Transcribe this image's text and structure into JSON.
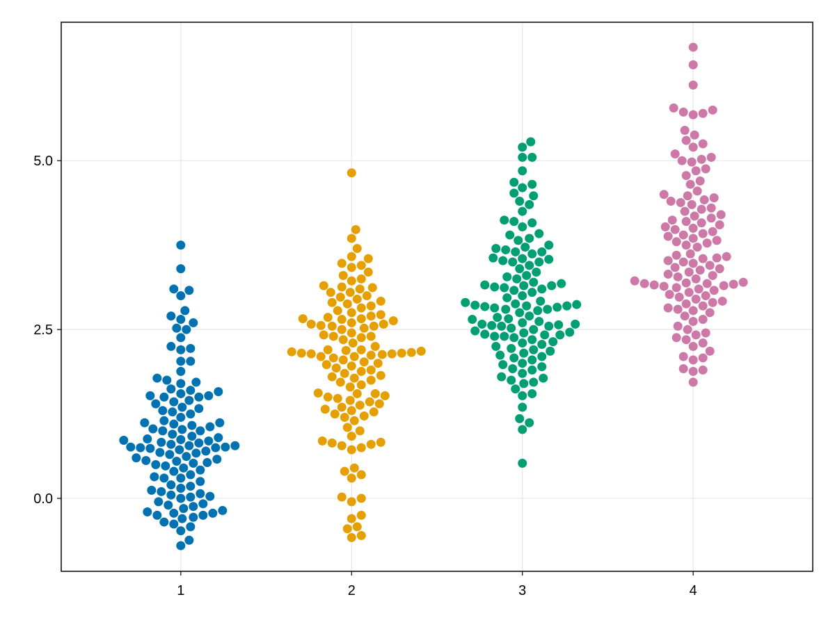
{
  "chart_data": {
    "type": "scatter",
    "subtype": "beeswarm",
    "title": "",
    "xlabel": "",
    "ylabel": "",
    "xlim": [
      0.3,
      4.7
    ],
    "ylim": [
      -1.08,
      7.05
    ],
    "x_ticks": [
      1,
      2,
      3,
      4
    ],
    "x_tick_labels": [
      "1",
      "2",
      "3",
      "4"
    ],
    "y_ticks": [
      0.0,
      2.5,
      5.0
    ],
    "y_tick_labels": [
      "0.0",
      "2.5",
      "5.0"
    ],
    "grid": true,
    "legend": "none",
    "series": [
      {
        "category": 1,
        "color": "#0072B2",
        "values": [
          3.75,
          3.4,
          3.1,
          3.08,
          3.0,
          2.78,
          2.7,
          2.65,
          2.6,
          2.52,
          2.5,
          2.38,
          2.25,
          2.22,
          2.2,
          2.03,
          2.03,
          1.88,
          1.78,
          1.75,
          1.72,
          1.7,
          1.62,
          1.6,
          1.58,
          1.55,
          1.52,
          1.52,
          1.5,
          1.5,
          1.45,
          1.43,
          1.4,
          1.35,
          1.33,
          1.3,
          1.28,
          1.25,
          1.2,
          1.15,
          1.12,
          1.12,
          1.1,
          1.08,
          1.06,
          1.03,
          1.02,
          1.0,
          1.0,
          0.95,
          0.92,
          0.9,
          0.88,
          0.87,
          0.86,
          0.85,
          0.83,
          0.82,
          0.8,
          0.78,
          0.78,
          0.76,
          0.76,
          0.75,
          0.75,
          0.74,
          0.72,
          0.7,
          0.68,
          0.67,
          0.65,
          0.62,
          0.6,
          0.58,
          0.56,
          0.55,
          0.53,
          0.52,
          0.5,
          0.48,
          0.45,
          0.42,
          0.4,
          0.35,
          0.32,
          0.3,
          0.3,
          0.25,
          0.2,
          0.18,
          0.15,
          0.12,
          0.1,
          0.07,
          0.05,
          0.03,
          0.02,
          0.0,
          -0.05,
          -0.08,
          -0.1,
          -0.12,
          -0.15,
          -0.18,
          -0.2,
          -0.22,
          -0.22,
          -0.25,
          -0.25,
          -0.28,
          -0.3,
          -0.35,
          -0.38,
          -0.42,
          -0.48,
          -0.62,
          -0.7
        ]
      },
      {
        "category": 2,
        "color": "#E69F00",
        "values": [
          4.82,
          3.98,
          3.85,
          3.7,
          3.58,
          3.55,
          3.48,
          3.45,
          3.42,
          3.35,
          3.3,
          3.25,
          3.22,
          3.15,
          3.13,
          3.12,
          3.1,
          3.05,
          3.05,
          3.0,
          2.98,
          2.95,
          2.92,
          2.9,
          2.88,
          2.85,
          2.82,
          2.78,
          2.75,
          2.72,
          2.7,
          2.68,
          2.66,
          2.66,
          2.65,
          2.63,
          2.6,
          2.58,
          2.58,
          2.56,
          2.55,
          2.55,
          2.52,
          2.5,
          2.45,
          2.42,
          2.4,
          2.4,
          2.38,
          2.35,
          2.3,
          2.25,
          2.2,
          2.2,
          2.19,
          2.18,
          2.17,
          2.16,
          2.15,
          2.15,
          2.14,
          2.14,
          2.13,
          2.12,
          2.1,
          2.1,
          2.08,
          2.05,
          2.02,
          2.0,
          1.98,
          1.96,
          1.93,
          1.9,
          1.88,
          1.85,
          1.82,
          1.8,
          1.78,
          1.75,
          1.72,
          1.68,
          1.65,
          1.56,
          1.55,
          1.55,
          1.52,
          1.5,
          1.48,
          1.45,
          1.43,
          1.4,
          1.38,
          1.35,
          1.32,
          1.3,
          1.28,
          1.25,
          1.22,
          1.2,
          1.15,
          1.05,
          1.0,
          0.92,
          0.85,
          0.83,
          0.82,
          0.8,
          0.78,
          0.75,
          0.72,
          0.45,
          0.4,
          0.35,
          0.3,
          0.02,
          0.0,
          -0.05,
          -0.25,
          -0.3,
          -0.42,
          -0.45,
          -0.55,
          -0.58
        ]
      },
      {
        "category": 3,
        "color": "#009E73",
        "values": [
          5.28,
          5.2,
          5.05,
          5.05,
          4.85,
          4.68,
          4.65,
          4.6,
          4.52,
          4.48,
          4.4,
          4.35,
          4.25,
          4.12,
          4.1,
          4.08,
          4.02,
          3.92,
          3.9,
          3.85,
          3.82,
          3.75,
          3.72,
          3.7,
          3.68,
          3.65,
          3.65,
          3.62,
          3.56,
          3.55,
          3.54,
          3.52,
          3.5,
          3.5,
          3.45,
          3.4,
          3.35,
          3.3,
          3.28,
          3.25,
          3.2,
          3.18,
          3.16,
          3.15,
          3.15,
          3.13,
          3.12,
          3.1,
          3.08,
          3.05,
          3.0,
          2.97,
          2.92,
          2.9,
          2.88,
          2.87,
          2.86,
          2.85,
          2.85,
          2.84,
          2.83,
          2.82,
          2.8,
          2.8,
          2.78,
          2.75,
          2.7,
          2.68,
          2.66,
          2.65,
          2.62,
          2.6,
          2.58,
          2.58,
          2.57,
          2.56,
          2.55,
          2.55,
          2.52,
          2.5,
          2.48,
          2.46,
          2.45,
          2.43,
          2.42,
          2.42,
          2.4,
          2.4,
          2.38,
          2.35,
          2.32,
          2.3,
          2.28,
          2.25,
          2.22,
          2.2,
          2.18,
          2.15,
          2.12,
          2.1,
          2.08,
          2.05,
          2.0,
          1.98,
          1.95,
          1.92,
          1.9,
          1.85,
          1.8,
          1.78,
          1.75,
          1.72,
          1.7,
          1.62,
          1.55,
          1.52,
          1.35,
          1.18,
          1.12,
          1.02,
          0.52
        ]
      },
      {
        "category": 4,
        "color": "#CC79A7",
        "values": [
          6.68,
          6.42,
          6.12,
          5.78,
          5.75,
          5.72,
          5.7,
          5.68,
          5.45,
          5.38,
          5.3,
          5.25,
          5.2,
          5.1,
          5.05,
          5.02,
          5.0,
          4.98,
          4.88,
          4.85,
          4.78,
          4.7,
          4.65,
          4.55,
          4.5,
          4.48,
          4.45,
          4.42,
          4.4,
          4.38,
          4.35,
          4.3,
          4.28,
          4.25,
          4.2,
          4.18,
          4.15,
          4.12,
          4.1,
          4.08,
          4.05,
          4.02,
          4.0,
          3.98,
          3.95,
          3.92,
          3.9,
          3.88,
          3.85,
          3.82,
          3.8,
          3.78,
          3.75,
          3.72,
          3.62,
          3.6,
          3.58,
          3.56,
          3.55,
          3.52,
          3.5,
          3.48,
          3.45,
          3.42,
          3.4,
          3.38,
          3.35,
          3.32,
          3.3,
          3.28,
          3.25,
          3.22,
          3.2,
          3.19,
          3.18,
          3.18,
          3.17,
          3.16,
          3.15,
          3.14,
          3.12,
          3.1,
          3.08,
          3.05,
          3.02,
          3.0,
          2.98,
          2.95,
          2.92,
          2.9,
          2.88,
          2.85,
          2.82,
          2.8,
          2.78,
          2.75,
          2.7,
          2.65,
          2.62,
          2.55,
          2.5,
          2.45,
          2.42,
          2.38,
          2.35,
          2.3,
          2.25,
          2.18,
          2.1,
          2.08,
          2.05,
          1.92,
          1.9,
          1.88,
          1.72
        ]
      }
    ]
  }
}
